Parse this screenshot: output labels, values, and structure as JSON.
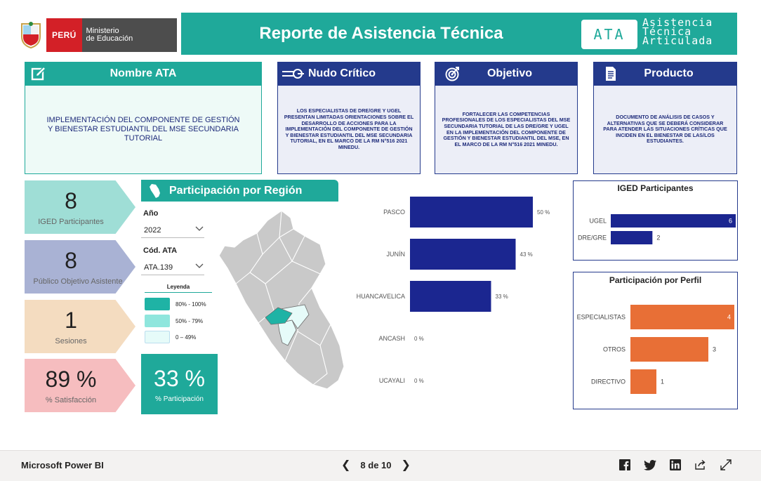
{
  "header": {
    "peru_label": "PERÚ",
    "ministry_line1": "Ministerio",
    "ministry_line2": "de Educación",
    "title": "Reporte de Asistencia Técnica",
    "ata_badge": "ATA",
    "ata_full_line1": "Asistencia",
    "ata_full_line2": "Técnica",
    "ata_full_line3": "Articulada"
  },
  "cards": {
    "nombre": {
      "title": "Nombre ATA",
      "body": "IMPLEMENTACIÓN DEL COMPONENTE DE GESTIÓN Y BIENESTAR ESTUDIANTIL DEL MSE  SECUNDARIA TUTORIAL"
    },
    "nudo": {
      "title": "Nudo Crítico",
      "body": "LOS ESPECIALISTAS DE DRE/GRE Y UGEL PRESENTAN LIMITADAS ORIENTACIONES SOBRE EL DESARROLLO DE ACCIONES PARA LA IMPLEMENTACIÓN DEL COMPONENTE DE GESTIÓN Y BIENESTAR ESTUDIANTIL DEL MSE SECUNDARIA TUTORIAL, EN EL MARCO DE LA RM N°516 2021 MINEDU."
    },
    "objetivo": {
      "title": "Objetivo",
      "body": "FORTALECER LAS COMPETENCIAS PROFESIONALES DE LOS ESPECIALISTAS DEL MSE SECUNDARIA TUTORIAL DE LAS DRE/GRE Y UGEL EN LA IMPLEMENTACIÓN DEL COMPONENTE DE GESTIÓN Y BIENESTAR ESTUDIANTIL DEL MSE, EN EL MARCO DE LA RM N°516 2021 MINEDU."
    },
    "producto": {
      "title": "Producto",
      "body": "DOCUMENTO DE ANÁLISIS DE CASOS Y ALTERNATIVAS QUE SE DEBERÁ CONSIDERAR PARA ATENDER LAS SITUACIONES CRÍTICAS QUE INCIDEN EN EL BIENESTAR DE LAS/LOS ESTUDIANTES."
    }
  },
  "kpis": {
    "iged": {
      "value": "8",
      "label": "IGED Participantes",
      "color": "#9fded6"
    },
    "publico": {
      "value": "8",
      "label": "Público Objetivo Asistente",
      "color": "#a9b2d4"
    },
    "sesiones": {
      "value": "1",
      "label": "Sesiones",
      "color": "#f4dcc0"
    },
    "satisfaccion": {
      "value": "89 %",
      "label": "% Satisfacción",
      "color": "#f6bdbf"
    },
    "participacion": {
      "value": "33 %",
      "label": "% Participación"
    }
  },
  "region": {
    "title": "Participación por Región",
    "year_label": "Año",
    "year_value": "2022",
    "code_label": "Cód. ATA",
    "code_value": "ATA.139",
    "legend_title": "Leyenda",
    "legend": [
      {
        "label": "80% - 100%",
        "color": "#1fb3a5"
      },
      {
        "label": "50% - 79%",
        "color": "#8fe6dd"
      },
      {
        "label": "0 – 49%",
        "color": "#e6fbf9"
      }
    ]
  },
  "chart_data": [
    {
      "type": "bar",
      "orientation": "horizontal",
      "categories": [
        "PASCO",
        "JUNÍN",
        "HUANCAVELICA",
        "ANCASH",
        "UCAYALI"
      ],
      "values": [
        50,
        43,
        33,
        0,
        0
      ],
      "value_labels": [
        "50 %",
        "43 %",
        "33 %",
        "0 %",
        "0 %"
      ],
      "xlim": [
        0,
        60
      ],
      "color": "#1b2690"
    },
    {
      "type": "bar",
      "orientation": "horizontal",
      "title": "IGED Participantes",
      "categories": [
        "UGEL",
        "DRE/GRE"
      ],
      "values": [
        6,
        2
      ],
      "xlim": [
        0,
        6
      ],
      "color": "#1b2690"
    },
    {
      "type": "bar",
      "orientation": "horizontal",
      "title": "Participación por Perfil",
      "categories": [
        "ESPECIALISTAS",
        "OTROS",
        "DIRECTIVO"
      ],
      "values": [
        4,
        3,
        1
      ],
      "xlim": [
        0,
        4
      ],
      "color": "#e86f36"
    }
  ],
  "footer": {
    "brand": "Microsoft Power BI",
    "page_indicator": "8 de 10"
  }
}
